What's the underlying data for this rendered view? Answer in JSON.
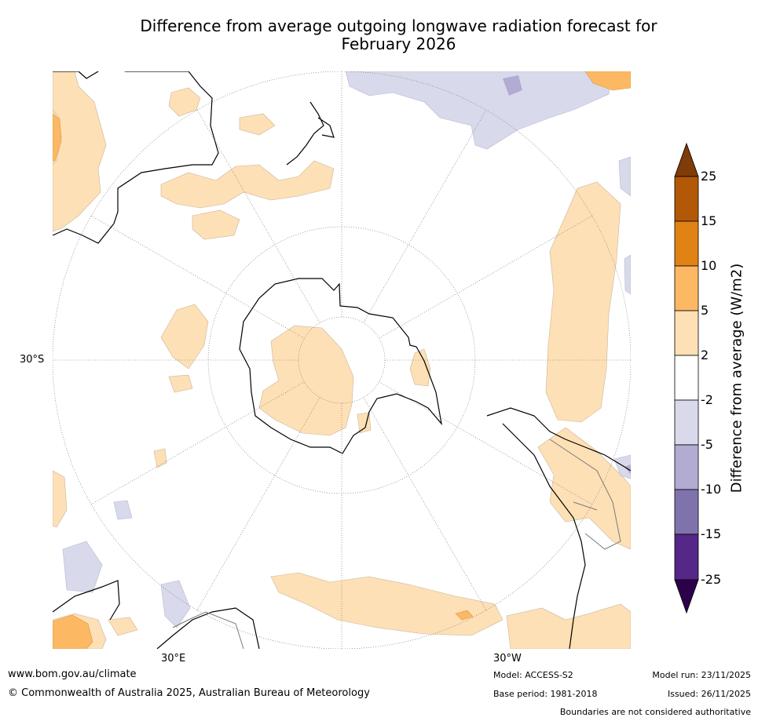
{
  "title_line1": "Difference from average outgoing longwave radiation forecast for",
  "title_line2": "February 2026",
  "map": {
    "projection": "south polar stereographic",
    "lat_label": "30°S",
    "lon_labels": [
      "30°E",
      "30°W"
    ]
  },
  "colorbar": {
    "label": "Difference from average (W/m2)",
    "ticks": [
      "25",
      "15",
      "10",
      "5",
      "2",
      "-2",
      "-5",
      "-10",
      "-15",
      "-25"
    ],
    "colors": {
      "gt25": "#7f3b08",
      "15_25": "#b35806",
      "10_15": "#e08214",
      "5_10": "#fdb863",
      "2_5": "#fee0b6",
      "m2_2": "#ffffff",
      "m5_m2": "#d8daeb",
      "m10_m5": "#b2abd2",
      "m15_m10": "#8073ac",
      "m25_m15": "#542788",
      "lt_m25": "#2d004b"
    }
  },
  "footer": {
    "website": "www.bom.gov.au/climate",
    "copyright": "© Commonwealth of Australia 2025, Australian Bureau of Meteorology",
    "model": "Model: ACCESS-S2",
    "base_period": "Base period: 1981-2018",
    "model_run": "Model run: 23/11/2025",
    "issued": "Issued: 26/11/2025",
    "disclaimer": "Boundaries are not considered authoritative"
  }
}
